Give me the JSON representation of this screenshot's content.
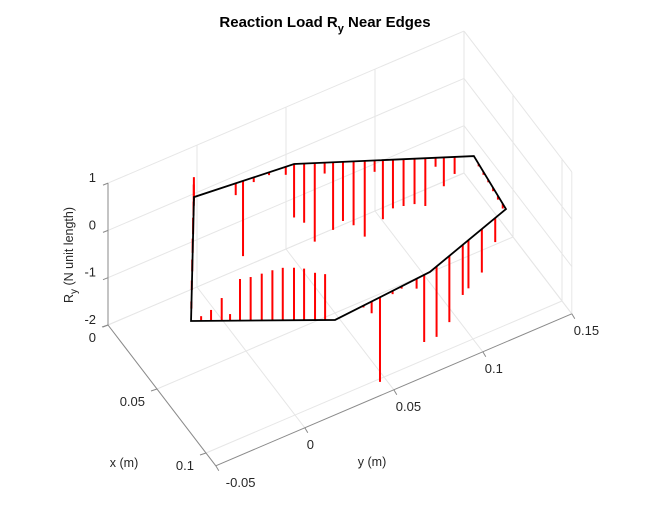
{
  "chart_data": {
    "type": "stem3",
    "title": "Reaction Load R",
    "title_sub": "y",
    "title_rest": " Near Edges",
    "xlabel": "x (m)",
    "ylabel": "y (m)",
    "zlabel_main": "R",
    "zlabel_sub": "y",
    "zlabel_rest": " (N unit length)",
    "xlim": [
      0,
      0.11
    ],
    "ylim": [
      -0.05,
      0.15
    ],
    "zlim": [
      -2,
      1
    ],
    "xticks": [
      {
        "v": 0,
        "label": "0"
      },
      {
        "v": 0.05,
        "label": "0.05"
      },
      {
        "v": 0.1,
        "label": "0.1"
      }
    ],
    "yticks": [
      {
        "v": -0.05,
        "label": "-0.05"
      },
      {
        "v": 0,
        "label": "0"
      },
      {
        "v": 0.05,
        "label": "0.05"
      },
      {
        "v": 0.1,
        "label": "0.1"
      },
      {
        "v": 0.15,
        "label": "0.15"
      }
    ],
    "zticks": [
      {
        "v": 1,
        "label": "1"
      },
      {
        "v": 0,
        "label": "0"
      },
      {
        "v": -1,
        "label": "-1"
      },
      {
        "v": -2,
        "label": "-2"
      }
    ],
    "grid": true,
    "boundary_color": "#000000",
    "stem_color": "#ff0000",
    "boundary": [
      [
        0.0742,
        -0.0442
      ],
      [
        0.002,
        -0.0028
      ],
      [
        0.0077,
        0.0503
      ],
      [
        0.0482,
        0.129
      ],
      [
        0.0875,
        0.1254
      ],
      [
        0.1054,
        0.0728
      ],
      [
        0.1098,
        0.0171
      ]
    ],
    "stems": [
      {
        "edge": 1,
        "t": 0.417,
        "z": -0.25
      },
      {
        "edge": 1,
        "t": 0.49,
        "z": -1.59
      },
      {
        "edge": 1,
        "t": 0.597,
        "z": -0.1
      },
      {
        "edge": 1,
        "t": 0.75,
        "z": -0.06
      },
      {
        "edge": 1,
        "t": 0.917,
        "z": -0.17
      },
      {
        "edge": 2,
        "t": 0.0,
        "z": -1.13
      },
      {
        "edge": 2,
        "t": 0.056,
        "z": -1.25
      },
      {
        "edge": 2,
        "t": 0.115,
        "z": -1.66
      },
      {
        "edge": 2,
        "t": 0.17,
        "z": -0.23
      },
      {
        "edge": 2,
        "t": 0.217,
        "z": -1.43
      },
      {
        "edge": 2,
        "t": 0.272,
        "z": -1.25
      },
      {
        "edge": 2,
        "t": 0.331,
        "z": -1.35
      },
      {
        "edge": 2,
        "t": 0.393,
        "z": -1.6
      },
      {
        "edge": 2,
        "t": 0.448,
        "z": -0.24
      },
      {
        "edge": 2,
        "t": 0.494,
        "z": -1.25
      },
      {
        "edge": 2,
        "t": 0.55,
        "z": -1.03
      },
      {
        "edge": 2,
        "t": 0.609,
        "z": -0.99
      },
      {
        "edge": 2,
        "t": 0.67,
        "z": -0.96
      },
      {
        "edge": 2,
        "t": 0.73,
        "z": -1.01
      },
      {
        "edge": 2,
        "t": 0.787,
        "z": -0.19
      },
      {
        "edge": 2,
        "t": 0.833,
        "z": -0.61
      },
      {
        "edge": 2,
        "t": 0.893,
        "z": -0.36
      },
      {
        "edge": 3,
        "t": 0.15,
        "z": -0.05
      },
      {
        "edge": 3,
        "t": 0.3,
        "z": -0.06
      },
      {
        "edge": 3,
        "t": 0.45,
        "z": -0.05
      },
      {
        "edge": 3,
        "t": 0.6,
        "z": -0.07
      },
      {
        "edge": 3,
        "t": 0.75,
        "z": -0.08
      },
      {
        "edge": 3,
        "t": 0.9,
        "z": -0.1
      },
      {
        "edge": 4,
        "t": 0.141,
        "z": -0.51
      },
      {
        "edge": 4,
        "t": 0.317,
        "z": -0.92
      },
      {
        "edge": 4,
        "t": 0.493,
        "z": -1.02
      },
      {
        "edge": 4,
        "t": 0.568,
        "z": -1.06
      },
      {
        "edge": 4,
        "t": 0.744,
        "z": -1.4
      },
      {
        "edge": 4,
        "t": 0.912,
        "z": -1.49
      },
      {
        "edge": 5,
        "t": 0.06,
        "z": -1.42
      },
      {
        "edge": 5,
        "t": 0.14,
        "z": -0.21
      },
      {
        "edge": 5,
        "t": 0.298,
        "z": -0.05
      },
      {
        "edge": 5,
        "t": 0.393,
        "z": -0.07
      },
      {
        "edge": 5,
        "t": 0.526,
        "z": -1.79
      },
      {
        "edge": 5,
        "t": 0.614,
        "z": -0.25
      },
      {
        "edge": 5,
        "t": 0.7,
        "z": -0.04
      },
      {
        "edge": 6,
        "t": 0.069,
        "z": 0.97
      },
      {
        "edge": 6,
        "t": 0.139,
        "z": 1.0
      },
      {
        "edge": 6,
        "t": 0.215,
        "z": 1.09
      },
      {
        "edge": 6,
        "t": 0.285,
        "z": 1.11
      },
      {
        "edge": 6,
        "t": 0.363,
        "z": 1.11
      },
      {
        "edge": 6,
        "t": 0.435,
        "z": 1.06
      },
      {
        "edge": 6,
        "t": 0.509,
        "z": 0.99
      },
      {
        "edge": 6,
        "t": 0.586,
        "z": 0.92
      },
      {
        "edge": 6,
        "t": 0.66,
        "z": 0.88
      },
      {
        "edge": 6,
        "t": 0.729,
        "z": 0.14
      },
      {
        "edge": 6,
        "t": 0.787,
        "z": 0.48
      },
      {
        "edge": 6,
        "t": 0.861,
        "z": 0.23
      },
      {
        "edge": 6,
        "t": 0.93,
        "z": 0.1
      },
      {
        "edge": 0,
        "t": 0.1,
        "z": 0.15
      },
      {
        "edge": 0,
        "t": 0.25,
        "z": 0.2
      },
      {
        "edge": 0,
        "t": 0.4,
        "z": 0.25
      },
      {
        "edge": 0,
        "t": 0.55,
        "z": 0.3
      },
      {
        "edge": 0,
        "t": 0.7,
        "z": 0.35
      },
      {
        "edge": 0,
        "t": 0.85,
        "z": 0.3
      },
      {
        "edge": 0,
        "t": 0.93,
        "z": 0.45
      },
      {
        "edge": 0,
        "t": 0.97,
        "z": 0.5
      }
    ]
  }
}
